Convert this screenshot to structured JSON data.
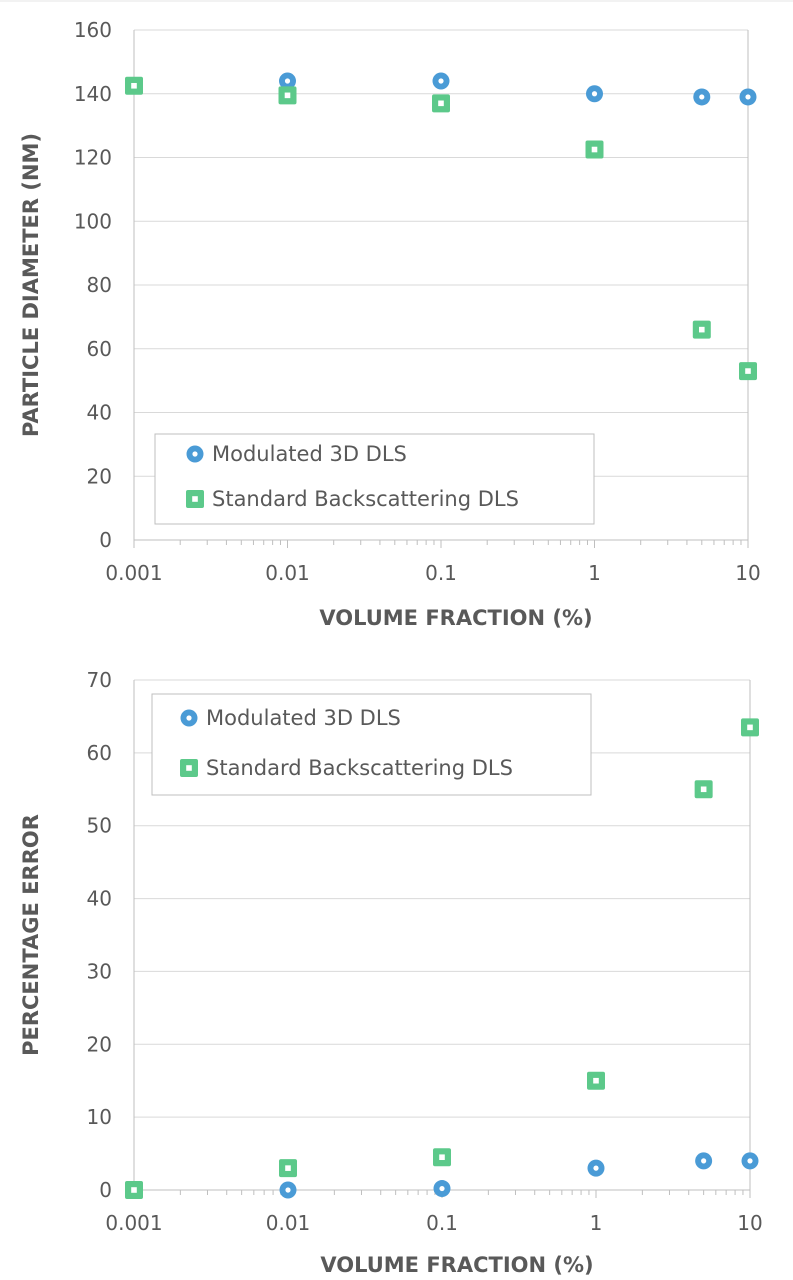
{
  "palette": {
    "modulated": "#4a9bd6",
    "standard": "#5cc98a",
    "grid": "#d9d9d9",
    "axis": "#bfbfbf",
    "text": "#595959"
  },
  "chart_data": [
    {
      "type": "scatter",
      "xscale": "log",
      "xlim": [
        0.001,
        10
      ],
      "ylim": [
        0,
        160
      ],
      "xticks": [
        "0.001",
        "0.01",
        "0.1",
        "1",
        "10"
      ],
      "yticks": [
        "0",
        "20",
        "40",
        "60",
        "80",
        "100",
        "120",
        "140",
        "160"
      ],
      "xlabel": "VOLUME FRACTION (%)",
      "ylabel": "PARTICLE DIAMETER (NM)",
      "grid": "horizontal",
      "legend": "bottom-left",
      "series": [
        {
          "name": "Modulated 3D DLS",
          "marker": "circle",
          "color": "#4a9bd6",
          "x": [
            0.01,
            0.1,
            1,
            5,
            10
          ],
          "y": [
            144,
            144,
            140,
            139,
            139
          ]
        },
        {
          "name": "Standard Backscattering DLS",
          "marker": "square",
          "color": "#5cc98a",
          "x": [
            0.001,
            0.01,
            0.1,
            1,
            5,
            10
          ],
          "y": [
            142.5,
            139.5,
            137,
            122.5,
            66,
            53
          ]
        }
      ]
    },
    {
      "type": "scatter",
      "xscale": "log",
      "xlim": [
        0.001,
        10
      ],
      "ylim": [
        0,
        70
      ],
      "xticks": [
        "0.001",
        "0.01",
        "0.1",
        "1",
        "10"
      ],
      "yticks": [
        "0",
        "10",
        "20",
        "30",
        "40",
        "50",
        "60",
        "70"
      ],
      "xlabel": "VOLUME FRACTION (%)",
      "ylabel": "PERCENTAGE ERROR",
      "grid": "horizontal",
      "legend": "top-left",
      "series": [
        {
          "name": "Modulated 3D DLS",
          "marker": "circle",
          "color": "#4a9bd6",
          "x": [
            0.01,
            0.1,
            1,
            5,
            10
          ],
          "y": [
            0,
            0.2,
            3,
            4,
            4
          ]
        },
        {
          "name": "Standard Backscattering DLS",
          "marker": "square",
          "color": "#5cc98a",
          "x": [
            0.001,
            0.01,
            0.1,
            1,
            5,
            10
          ],
          "y": [
            0,
            3,
            4.5,
            15,
            55,
            63.5
          ]
        }
      ]
    }
  ]
}
